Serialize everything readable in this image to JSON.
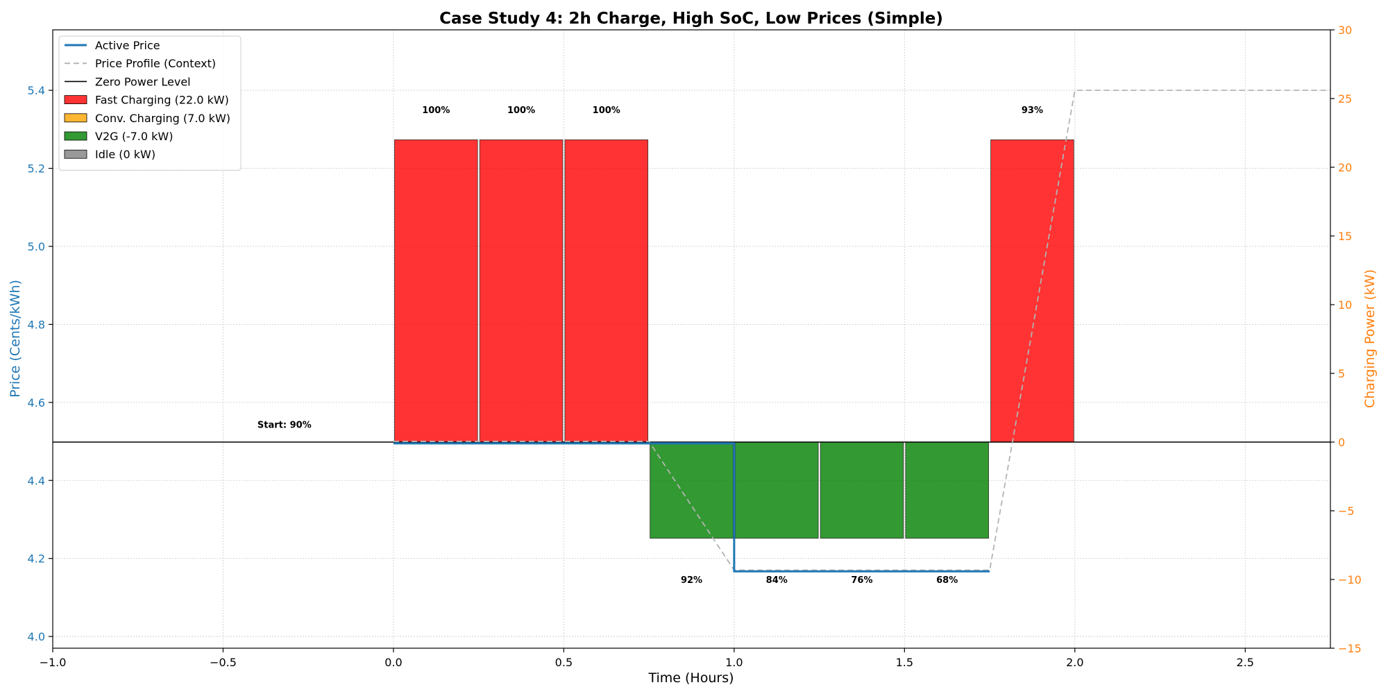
{
  "chart_data": {
    "type": "bar",
    "title": "Case Study 4: 2h Charge, High SoC, Low Prices (Simple)",
    "xlabel": "Time (Hours)",
    "ylabel_left": "Price (Cents/kWh)",
    "ylabel_right": "Charging Power (kW)",
    "xlim": [
      -1.0,
      2.75
    ],
    "ylim_left": [
      3.97,
      5.555
    ],
    "ylim_right": [
      -15,
      30
    ],
    "x_ticks": [
      "−1.0",
      "−0.5",
      "0.0",
      "0.5",
      "1.0",
      "1.5",
      "2.0",
      "2.5"
    ],
    "y_left_ticks": [
      "4.0",
      "4.2",
      "4.4",
      "4.6",
      "4.8",
      "5.0",
      "5.2",
      "5.4"
    ],
    "y_right_ticks": [
      "−15",
      "−10",
      "−5",
      "0",
      "5",
      "10",
      "15",
      "20",
      "25",
      "30"
    ],
    "grid": true,
    "legend_position": "top-left",
    "colors": {
      "active_price": "#1f77b4",
      "price_profile": "#b3b3b3",
      "zero_line": "#000000",
      "fast": "#ff0000",
      "conv": "#ffa500",
      "v2g": "#008000",
      "idle": "#808080",
      "left_axis": "#1f77b4",
      "right_axis": "#ff7f0e"
    },
    "legend": [
      {
        "kind": "line",
        "label": "Active Price",
        "color_key": "active_price"
      },
      {
        "kind": "dashed",
        "label": "Price Profile (Context)",
        "color_key": "price_profile"
      },
      {
        "kind": "thin",
        "label": "Zero Power Level",
        "color_key": "zero_line"
      },
      {
        "kind": "patch",
        "label": "Fast Charging (22.0 kW)",
        "color_key": "fast"
      },
      {
        "kind": "patch",
        "label": "Conv. Charging (7.0 kW)",
        "color_key": "conv"
      },
      {
        "kind": "patch",
        "label": "V2G (-7.0 kW)",
        "color_key": "v2g"
      },
      {
        "kind": "patch",
        "label": "Idle (0 kW)",
        "color_key": "idle"
      }
    ],
    "bars": [
      {
        "start": 0.0,
        "end": 0.25,
        "power": 22,
        "mode": "fast",
        "soc": "100%"
      },
      {
        "start": 0.25,
        "end": 0.5,
        "power": 22,
        "mode": "fast",
        "soc": "100%"
      },
      {
        "start": 0.5,
        "end": 0.75,
        "power": 22,
        "mode": "fast",
        "soc": "100%"
      },
      {
        "start": 0.75,
        "end": 1.0,
        "power": -7,
        "mode": "v2g",
        "soc": "92%"
      },
      {
        "start": 1.0,
        "end": 1.25,
        "power": -7,
        "mode": "v2g",
        "soc": "84%"
      },
      {
        "start": 1.25,
        "end": 1.5,
        "power": -7,
        "mode": "v2g",
        "soc": "76%"
      },
      {
        "start": 1.5,
        "end": 1.75,
        "power": -7,
        "mode": "v2g",
        "soc": "68%"
      },
      {
        "start": 1.75,
        "end": 2.0,
        "power": 22,
        "mode": "fast",
        "soc": "93%"
      }
    ],
    "price_profile": {
      "x": [
        0.0,
        0.75,
        1.0,
        1.75,
        2.0,
        2.75
      ],
      "y": [
        4.5,
        4.5,
        4.17,
        4.17,
        5.4,
        5.4
      ]
    },
    "active_price": {
      "x": [
        0.0,
        0.75,
        1.0,
        1.0,
        1.75
      ],
      "y": [
        4.495,
        4.495,
        4.495,
        4.167,
        4.167
      ]
    },
    "start_annotation": {
      "text": "Start: 90%",
      "x": -0.32,
      "power": 1.3
    }
  }
}
